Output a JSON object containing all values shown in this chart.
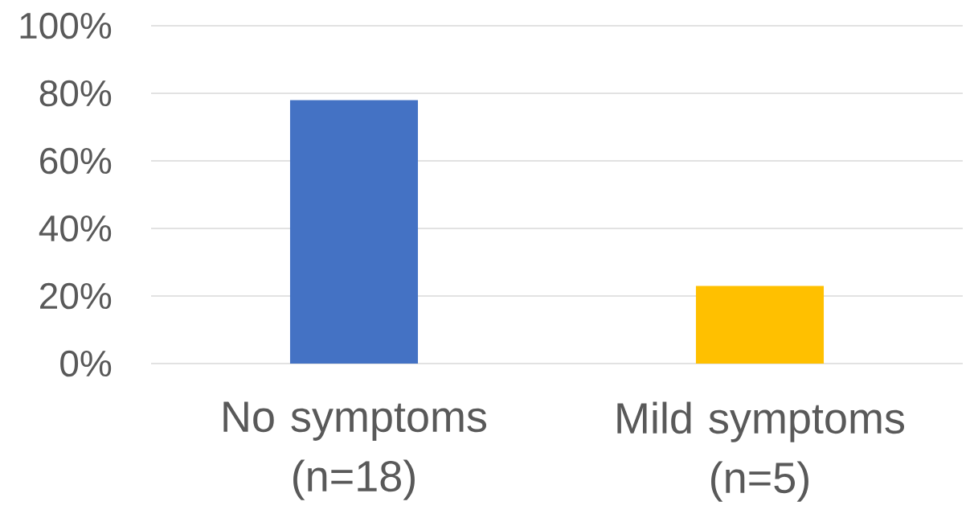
{
  "chart_data": {
    "type": "bar",
    "categories": [
      "No symptoms (n=18)",
      "Mild symptoms (n=5)"
    ],
    "values": [
      78,
      23
    ],
    "colors": [
      "#4472c4",
      "#ffc000"
    ],
    "ylim": [
      0,
      100
    ],
    "yticks": [
      {
        "value": 0,
        "label": "0%"
      },
      {
        "value": 20,
        "label": "20%"
      },
      {
        "value": 40,
        "label": "40%"
      },
      {
        "value": 60,
        "label": "60%"
      },
      {
        "value": 80,
        "label": "80%"
      },
      {
        "value": 100,
        "label": "100%"
      }
    ],
    "grid": "y"
  }
}
